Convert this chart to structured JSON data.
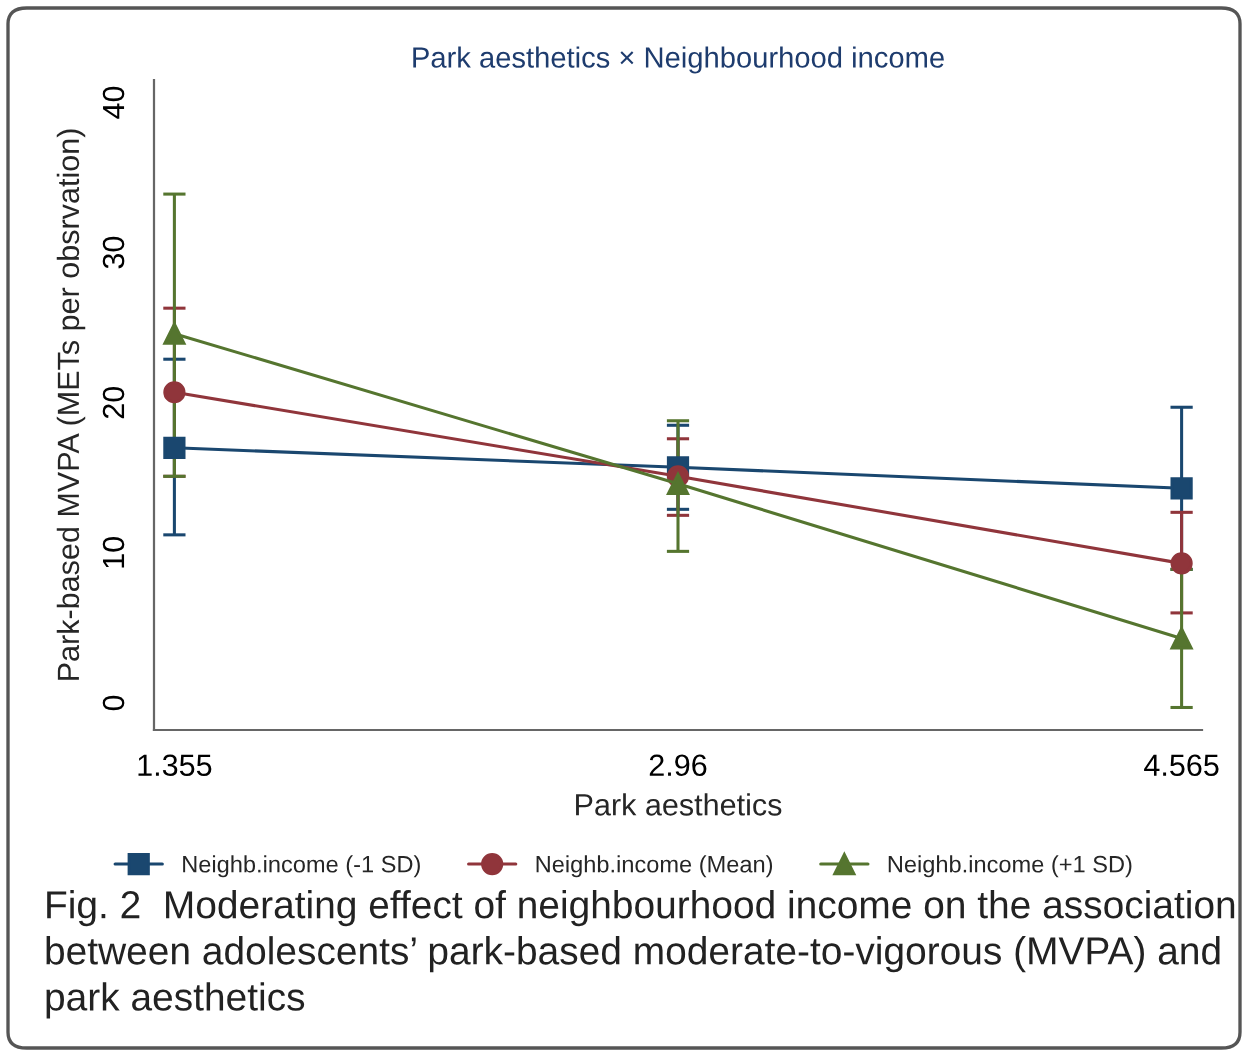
{
  "chart_data": {
    "type": "line",
    "title": "Park aesthetics × Neighbourhood income",
    "xlabel": "Park aesthetics",
    "ylabel": "Park-based MVPA (METs per obsrvation)",
    "x": [
      1.355,
      2.96,
      4.565
    ],
    "series": [
      {
        "name": "Neighb.income (-1 SD)",
        "color": "#1a476f",
        "marker": "square",
        "values": [
          17.0,
          15.7,
          14.3
        ],
        "errors": [
          [
            11.2,
            22.9
          ],
          [
            12.9,
            18.5
          ],
          [
            8.9,
            19.7
          ]
        ]
      },
      {
        "name": "Neighb.income (Mean)",
        "color": "#90353b",
        "marker": "circle",
        "values": [
          20.7,
          15.1,
          9.3
        ],
        "errors": [
          [
            15.1,
            26.3
          ],
          [
            12.5,
            17.6
          ],
          [
            6.0,
            12.7
          ]
        ]
      },
      {
        "name": "Neighb.income (+1 SD)",
        "color": "#55752f",
        "marker": "triangle",
        "values": [
          24.6,
          14.6,
          4.3
        ],
        "errors": [
          [
            15.1,
            33.9
          ],
          [
            10.1,
            18.8
          ],
          [
            -0.3,
            8.9
          ]
        ]
      }
    ],
    "xlim": [
      1.29,
      4.63
    ],
    "ylim": [
      -1.8,
      41.5
    ],
    "xticks": [
      1.355,
      2.96,
      4.565
    ],
    "yticks": [
      0,
      10,
      20,
      30,
      40
    ],
    "grid": false,
    "legend": "bottom",
    "line_style": "solid",
    "annotations": [
      "Fig. 2  Moderating effect of neighbourhood income on the association between adolescents’ park-based moderate-to-vigorous (MVPA) and park aesthetics"
    ]
  }
}
